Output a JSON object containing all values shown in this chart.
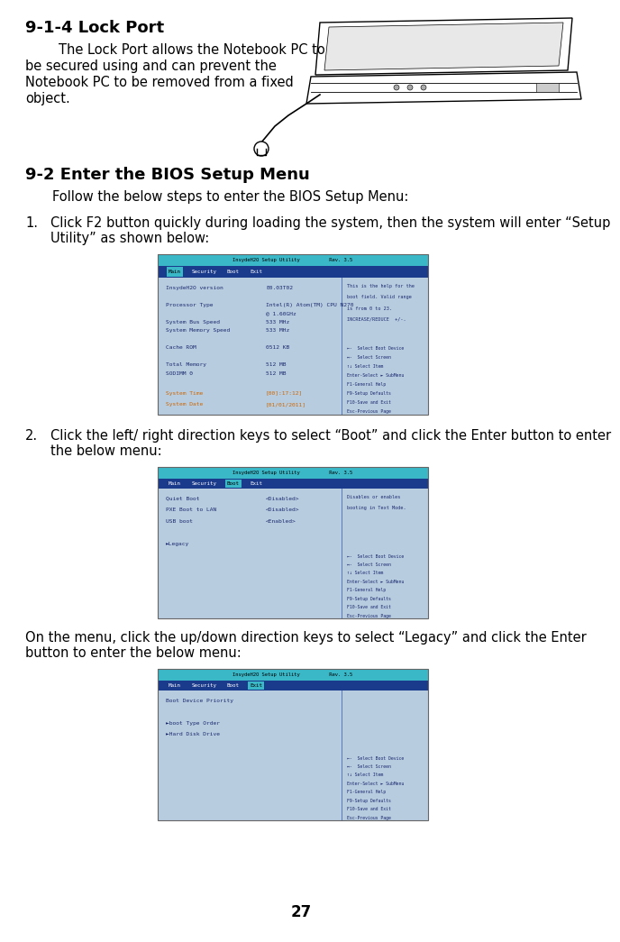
{
  "page_number": "27",
  "bg": "#ffffff",
  "s1_title": "9-1-4 Lock Port",
  "s1_body_line1": "        The Lock Port allows the Notebook PC to",
  "s1_body_line2": "be secured using and can prevent the",
  "s1_body_line3": "Notebook PC to be removed from a fixed",
  "s1_body_line4": "object.",
  "s2_title": "9-2 Enter the BIOS Setup Menu",
  "s2_intro": "        Follow the below steps to enter the BIOS Setup Menu:",
  "step1_num": "1.",
  "step1_text_a": "Click F2 button quickly during loading the system, then the system will enter “Setup",
  "step1_text_b": "Utility” as shown below:",
  "step2_num": "2.",
  "step2_text_a": "Click the left/ right direction keys to select “Boot” and click the Enter button to enter",
  "step2_text_b": "the below menu:",
  "para3_a": "On the menu, click the up/down direction keys to select “Legacy” and click the Enter",
  "para3_b": "button to enter the below menu:",
  "bios_teal": "#3ab8c8",
  "bios_darkblue": "#1a3a8c",
  "bios_lightblue": "#b8cce0",
  "bios_text_dark": "#1a2a6e",
  "bios_text_light": "#ccddff",
  "bios_highlight": "#3355aa",
  "bios_orange": "#cc6600",
  "body_fs": 10.5,
  "title_fs": 13,
  "mono_fs": 4.5
}
